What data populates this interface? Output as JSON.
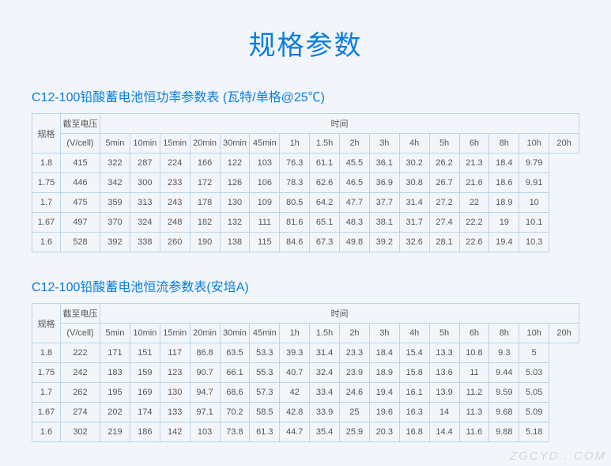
{
  "page_title": "规格参数",
  "watermark": "ZGCYD . COM",
  "colors": {
    "accent": "#0a7de0",
    "border": "#bcd3e8",
    "background": "#f2f6fb",
    "text": "#555555"
  },
  "table1": {
    "title": "C12-100铅酸蓄电池恒功率参数表 (瓦特/单格@25℃)",
    "row_group_label": "规格",
    "volt_header": "截至电压",
    "volt_unit": "(V/cell)",
    "time_header": "时间",
    "time_cols": [
      "5min",
      "10min",
      "15min",
      "20min",
      "30min",
      "45min",
      "1h",
      "1.5h",
      "2h",
      "3h",
      "4h",
      "5h",
      "6h",
      "8h",
      "10h",
      "20h"
    ],
    "rows": [
      {
        "v": "1.8",
        "d": [
          "415",
          "322",
          "287",
          "224",
          "166",
          "122",
          "103",
          "76.3",
          "61.1",
          "45.5",
          "36.1",
          "30.2",
          "26.2",
          "21.3",
          "18.4",
          "9.79"
        ]
      },
      {
        "v": "1.75",
        "d": [
          "446",
          "342",
          "300",
          "233",
          "172",
          "126",
          "106",
          "78.3",
          "62.6",
          "46.5",
          "36.9",
          "30.8",
          "26.7",
          "21.6",
          "18.6",
          "9.91"
        ]
      },
      {
        "v": "1.7",
        "d": [
          "475",
          "359",
          "313",
          "243",
          "178",
          "130",
          "109",
          "80.5",
          "64.2",
          "47.7",
          "37.7",
          "31.4",
          "27.2",
          "22",
          "18.9",
          "10"
        ]
      },
      {
        "v": "1.67",
        "d": [
          "497",
          "370",
          "324",
          "248",
          "182",
          "132",
          "111",
          "81.6",
          "65.1",
          "48.3",
          "38.1",
          "31.7",
          "27.4",
          "22.2",
          "19",
          "10.1"
        ]
      },
      {
        "v": "1.6",
        "d": [
          "528",
          "392",
          "338",
          "260",
          "190",
          "138",
          "115",
          "84.6",
          "67.3",
          "49.8",
          "39.2",
          "32.6",
          "28.1",
          "22.6",
          "19.4",
          "10.3"
        ]
      }
    ]
  },
  "table2": {
    "title": "C12-100铅酸蓄电池恒流参数表(安培A)",
    "row_group_label": "规格",
    "volt_header": "截至电压",
    "volt_unit": "(V/cell)",
    "time_header": "时间",
    "time_cols": [
      "5min",
      "10min",
      "15min",
      "20min",
      "30min",
      "45min",
      "1h",
      "1.5h",
      "2h",
      "3h",
      "4h",
      "5h",
      "6h",
      "8h",
      "10h",
      "20h"
    ],
    "rows": [
      {
        "v": "1.8",
        "d": [
          "222",
          "171",
          "151",
          "117",
          "86.8",
          "63.5",
          "53.3",
          "39.3",
          "31.4",
          "23.3",
          "18.4",
          "15.4",
          "13.3",
          "10.8",
          "9.3",
          "5"
        ]
      },
      {
        "v": "1.75",
        "d": [
          "242",
          "183",
          "159",
          "123",
          "90.7",
          "66.1",
          "55.3",
          "40.7",
          "32.4",
          "23.9",
          "18.9",
          "15.8",
          "13.6",
          "11",
          "9.44",
          "5.03"
        ]
      },
      {
        "v": "1.7",
        "d": [
          "262",
          "195",
          "169",
          "130",
          "94.7",
          "68.6",
          "57.3",
          "42",
          "33.4",
          "24.6",
          "19.4",
          "16.1",
          "13.9",
          "11.2",
          "9.59",
          "5.05"
        ]
      },
      {
        "v": "1.67",
        "d": [
          "274",
          "202",
          "174",
          "133",
          "97.1",
          "70.2",
          "58.5",
          "42.8",
          "33.9",
          "25",
          "19.6",
          "16.3",
          "14",
          "11.3",
          "9.68",
          "5.09"
        ]
      },
      {
        "v": "1.6",
        "d": [
          "302",
          "219",
          "186",
          "142",
          "103",
          "73.8",
          "61.3",
          "44.7",
          "35.4",
          "25.9",
          "20.3",
          "16.8",
          "14.4",
          "11.6",
          "9.88",
          "5.18"
        ]
      }
    ]
  }
}
